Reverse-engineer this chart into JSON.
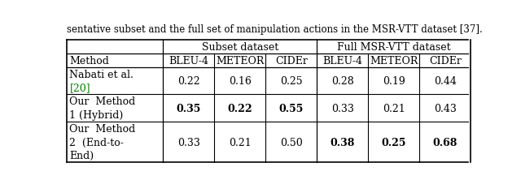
{
  "caption": "sentative subset and the full set of manipulation actions in the MSR-VTT dataset [37].",
  "ref_color": "#008000",
  "sub_headers": [
    "BLEU-4",
    "METEOR",
    "CIDEr",
    "BLEU-4",
    "METEOR",
    "CIDEr"
  ],
  "rows": [
    {
      "method_lines": [
        "Nabati et al.",
        "[20]"
      ],
      "ref_line_idx": 1,
      "values": [
        "0.22",
        "0.16",
        "0.25",
        "0.28",
        "0.19",
        "0.44"
      ],
      "bold": [
        false,
        false,
        false,
        false,
        false,
        false
      ]
    },
    {
      "method_lines": [
        "Our  Method",
        "1 (Hybrid)"
      ],
      "ref_line_idx": -1,
      "values": [
        "0.35",
        "0.22",
        "0.55",
        "0.33",
        "0.21",
        "0.43"
      ],
      "bold": [
        true,
        true,
        true,
        false,
        false,
        false
      ]
    },
    {
      "method_lines": [
        "Our  Method",
        "2  (End-to-",
        "End)"
      ],
      "ref_line_idx": -1,
      "values": [
        "0.33",
        "0.21",
        "0.50",
        "0.38",
        "0.25",
        "0.68"
      ],
      "bold": [
        false,
        false,
        false,
        true,
        true,
        true
      ]
    }
  ],
  "font_size": 9,
  "bg_color": "#ffffff",
  "text_color": "#000000",
  "line_color": "#000000"
}
